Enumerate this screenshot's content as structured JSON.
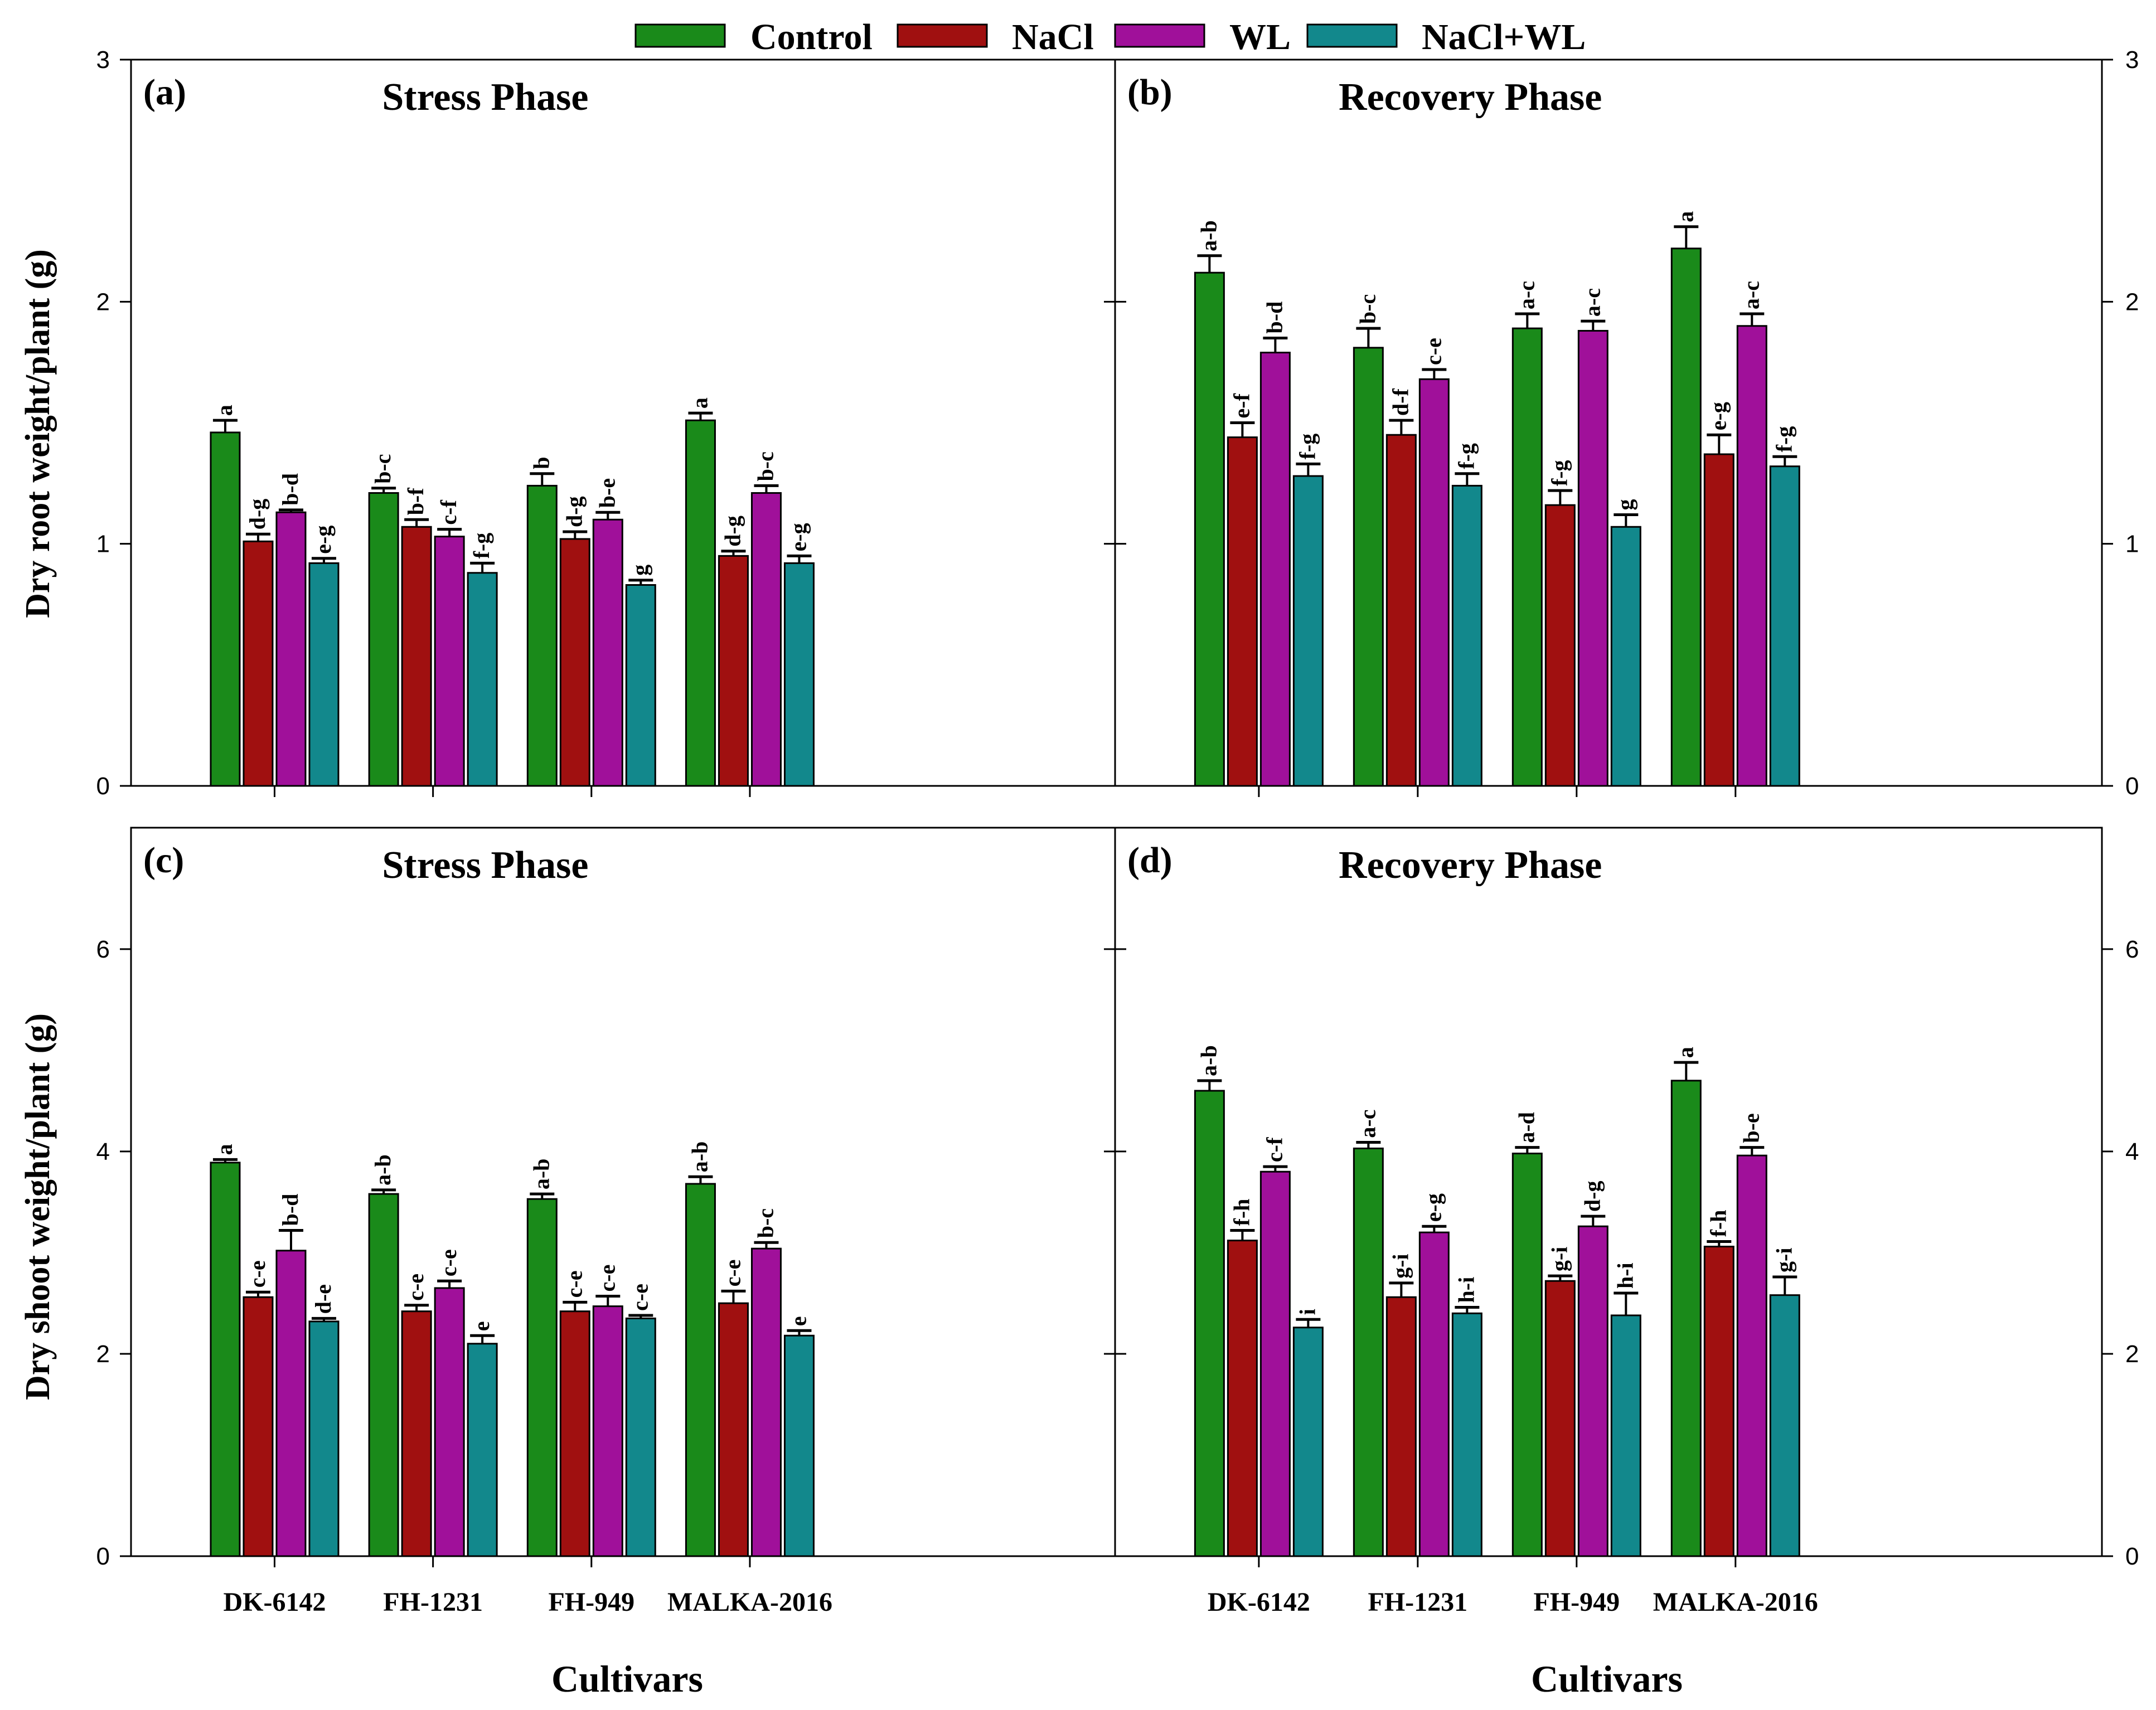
{
  "chart_data": {
    "type": "bar",
    "legend": {
      "placement": "top-center",
      "entries": [
        {
          "name": "Control",
          "color": "#1a8a1a"
        },
        {
          "name": "NaCl",
          "color": "#a01010"
        },
        {
          "name": "WL",
          "color": "#a0109a"
        },
        {
          "name": "NaCl+WL",
          "color": "#12888c"
        }
      ]
    },
    "categories": [
      "DK-6142",
      "FH-1231",
      "FH-949",
      "MALKA-2016"
    ],
    "xlabel": "Cultivars",
    "panels": [
      {
        "tag": "(a)",
        "title": "Stress Phase",
        "ylabel": "Dry root weight/plant (g)",
        "ylim": [
          0,
          3
        ],
        "yticks": [
          0,
          1,
          2,
          3
        ],
        "series": [
          {
            "name": "Control",
            "values": [
              1.46,
              1.21,
              1.24,
              1.51
            ],
            "errors": [
              0.05,
              0.02,
              0.05,
              0.03
            ],
            "letters": [
              "a",
              "b-c",
              "b",
              "a"
            ]
          },
          {
            "name": "NaCl",
            "values": [
              1.01,
              1.07,
              1.02,
              0.95
            ],
            "errors": [
              0.03,
              0.03,
              0.03,
              0.02
            ],
            "letters": [
              "d-g",
              "b-f",
              "d-g",
              "d-g"
            ]
          },
          {
            "name": "WL",
            "values": [
              1.13,
              1.03,
              1.1,
              1.21
            ],
            "errors": [
              0.01,
              0.03,
              0.03,
              0.03
            ],
            "letters": [
              "b-d",
              "c-f",
              "b-e",
              "b-c"
            ]
          },
          {
            "name": "NaCl+WL",
            "values": [
              0.92,
              0.88,
              0.83,
              0.92
            ],
            "errors": [
              0.02,
              0.04,
              0.02,
              0.03
            ],
            "letters": [
              "e-g",
              "f-g",
              "g",
              "e-g"
            ]
          }
        ]
      },
      {
        "tag": "(b)",
        "title": "Recovery Phase",
        "ylabel": "",
        "ylim": [
          0,
          3
        ],
        "yticks": [
          0,
          1,
          2,
          3
        ],
        "series": [
          {
            "name": "Control",
            "values": [
              2.12,
              1.81,
              1.89,
              2.22
            ],
            "errors": [
              0.07,
              0.08,
              0.06,
              0.09
            ],
            "letters": [
              "a-b",
              "b-c",
              "a-c",
              "a"
            ]
          },
          {
            "name": "NaCl",
            "values": [
              1.44,
              1.45,
              1.16,
              1.37
            ],
            "errors": [
              0.06,
              0.06,
              0.06,
              0.08
            ],
            "letters": [
              "e-f",
              "d-f",
              "f-g",
              "e-g"
            ]
          },
          {
            "name": "WL",
            "values": [
              1.79,
              1.68,
              1.88,
              1.9
            ],
            "errors": [
              0.06,
              0.04,
              0.04,
              0.05
            ],
            "letters": [
              "b-d",
              "c-e",
              "a-c",
              "a-c"
            ]
          },
          {
            "name": "NaCl+WL",
            "values": [
              1.28,
              1.24,
              1.07,
              1.32
            ],
            "errors": [
              0.05,
              0.05,
              0.05,
              0.04
            ],
            "letters": [
              "f-g",
              "f-g",
              "g",
              "f-g"
            ]
          }
        ]
      },
      {
        "tag": "(c)",
        "title": "Stress Phase",
        "ylabel": "Dry shoot weight/plant (g)",
        "ylim": [
          0,
          7.2
        ],
        "yticks": [
          0,
          2,
          4,
          6
        ],
        "series": [
          {
            "name": "Control",
            "values": [
              3.89,
              3.58,
              3.53,
              3.68
            ],
            "errors": [
              0.03,
              0.04,
              0.05,
              0.07
            ],
            "letters": [
              "a",
              "a-b",
              "a-b",
              "a-b"
            ]
          },
          {
            "name": "NaCl",
            "values": [
              2.56,
              2.42,
              2.42,
              2.5
            ],
            "errors": [
              0.05,
              0.06,
              0.09,
              0.12
            ],
            "letters": [
              "c-e",
              "c-e",
              "c-e",
              "c-e"
            ]
          },
          {
            "name": "WL",
            "values": [
              3.02,
              2.65,
              2.47,
              3.04
            ],
            "errors": [
              0.2,
              0.07,
              0.1,
              0.06
            ],
            "letters": [
              "b-d",
              "c-e",
              "c-e",
              "b-c"
            ]
          },
          {
            "name": "NaCl+WL",
            "values": [
              2.32,
              2.1,
              2.35,
              2.18
            ],
            "errors": [
              0.03,
              0.08,
              0.03,
              0.05
            ],
            "letters": [
              "d-e",
              "e",
              "c-e",
              "e"
            ]
          }
        ]
      },
      {
        "tag": "(d)",
        "title": "Recovery Phase",
        "ylabel": "",
        "ylim": [
          0,
          7.2
        ],
        "yticks": [
          0,
          2,
          4,
          6
        ],
        "series": [
          {
            "name": "Control",
            "values": [
              4.6,
              4.03,
              3.98,
              4.7
            ],
            "errors": [
              0.1,
              0.06,
              0.06,
              0.18
            ],
            "letters": [
              "a-b",
              "a-c",
              "a-d",
              "a"
            ]
          },
          {
            "name": "NaCl",
            "values": [
              3.12,
              2.56,
              2.72,
              3.06
            ],
            "errors": [
              0.1,
              0.14,
              0.05,
              0.05
            ],
            "letters": [
              "f-h",
              "g-i",
              "g-i",
              "f-h"
            ]
          },
          {
            "name": "WL",
            "values": [
              3.8,
              3.2,
              3.26,
              3.96
            ],
            "errors": [
              0.05,
              0.06,
              0.1,
              0.08
            ],
            "letters": [
              "c-f",
              "e-g",
              "d-g",
              "b-e"
            ]
          },
          {
            "name": "NaCl+WL",
            "values": [
              2.26,
              2.4,
              2.38,
              2.58
            ],
            "errors": [
              0.08,
              0.06,
              0.22,
              0.18
            ],
            "letters": [
              "i",
              "h-i",
              "h-i",
              "g-i"
            ]
          }
        ]
      }
    ]
  }
}
